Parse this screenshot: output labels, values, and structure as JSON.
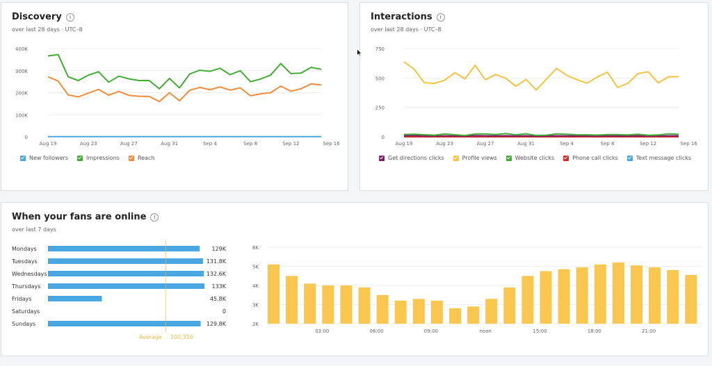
{
  "discovery": {
    "title": "Discovery",
    "subtitle": "over last 28 days · UTC–8",
    "y_labels": [
      "400K",
      "300K",
      "200K",
      "100K",
      "0"
    ],
    "x_labels": [
      "Aug 19",
      "Aug 23",
      "Aug 27",
      "Aug 31",
      "Sep 4",
      "Sep 8",
      "Sep 12",
      "Sep 16"
    ],
    "legend": [
      {
        "label": "New followers",
        "color": "#4aa6e0"
      },
      {
        "label": "Impressions",
        "color": "#42ac35"
      },
      {
        "label": "Reach",
        "color": "#f28c3a"
      }
    ]
  },
  "interactions": {
    "title": "Interactions",
    "subtitle": "over last 28 days · UTC–8",
    "y_labels": [
      "750",
      "500",
      "250",
      "0"
    ],
    "x_labels": [
      "Aug 19",
      "Aug 23",
      "Aug 27",
      "Aug 31",
      "Sep 4",
      "Sep 8",
      "Sep 12",
      "Sep 16"
    ],
    "legend": [
      {
        "label": "Get directions clicks",
        "color": "#7b1f6a"
      },
      {
        "label": "Profile views",
        "color": "#f5c342"
      },
      {
        "label": "Website clicks",
        "color": "#42ac35"
      },
      {
        "label": "Phone call clicks",
        "color": "#d62a2a"
      },
      {
        "label": "Text message clicks",
        "color": "#4aa6e0"
      }
    ]
  },
  "fans": {
    "title": "When your fans are online",
    "subtitle": "over last 7 days",
    "days": [
      {
        "label": "Mondays",
        "value": 129,
        "value_label": "129K"
      },
      {
        "label": "Tuesdays",
        "value": 131.8,
        "value_label": "131.8K"
      },
      {
        "label": "Wednesdays",
        "value": 132.6,
        "value_label": "132.6K"
      },
      {
        "label": "Thursdays",
        "value": 133,
        "value_label": "133K"
      },
      {
        "label": "Fridays",
        "value": 45.8,
        "value_label": "45.8K"
      },
      {
        "label": "Saturdays",
        "value": 0,
        "value_label": "0"
      },
      {
        "label": "Sundays",
        "value": 129.8,
        "value_label": "129.8K"
      }
    ],
    "average_label": "Average",
    "average_value": "100,316",
    "average_num": 100.316,
    "hour_y_labels": [
      "6K",
      "5K",
      "4K",
      "3K",
      "2K"
    ],
    "hour_x_labels": [
      {
        "index": 3,
        "label": "03:00"
      },
      {
        "index": 6,
        "label": "06:00"
      },
      {
        "index": 9,
        "label": "09:00"
      },
      {
        "index": 12,
        "label": "noon"
      },
      {
        "index": 15,
        "label": "15:00"
      },
      {
        "index": 18,
        "label": "18:00"
      },
      {
        "index": 21,
        "label": "21:00"
      }
    ]
  },
  "colors": {
    "bar_blue": "#4aa6e0",
    "bar_yellow": "#f9c74f",
    "grid": "#eeeeee",
    "average": "#f5b942"
  },
  "chart_data": [
    {
      "type": "line",
      "title": "Discovery",
      "x": [
        "Aug 19",
        "Aug 20",
        "Aug 21",
        "Aug 22",
        "Aug 23",
        "Aug 24",
        "Aug 25",
        "Aug 26",
        "Aug 27",
        "Aug 28",
        "Aug 29",
        "Aug 30",
        "Aug 31",
        "Sep 1",
        "Sep 2",
        "Sep 3",
        "Sep 4",
        "Sep 5",
        "Sep 6",
        "Sep 7",
        "Sep 8",
        "Sep 9",
        "Sep 10",
        "Sep 11",
        "Sep 12",
        "Sep 13",
        "Sep 14",
        "Sep 15"
      ],
      "ylim": [
        0,
        400000
      ],
      "series": [
        {
          "name": "Impressions",
          "values": [
            367000,
            373000,
            272000,
            255000,
            280000,
            295000,
            248000,
            275000,
            263000,
            255000,
            255000,
            218000,
            265000,
            222000,
            285000,
            302000,
            297000,
            311000,
            282000,
            300000,
            250000,
            262000,
            280000,
            332000,
            287000,
            289000,
            315000,
            306000
          ]
        },
        {
          "name": "Reach",
          "values": [
            272000,
            253000,
            190000,
            181000,
            198000,
            215000,
            189000,
            206000,
            188000,
            184000,
            183000,
            160000,
            200000,
            163000,
            211000,
            224000,
            214000,
            226000,
            212000,
            222000,
            186000,
            195000,
            200000,
            230000,
            207000,
            218000,
            240000,
            235000
          ]
        },
        {
          "name": "New followers",
          "values": [
            1000,
            1000,
            1000,
            1000,
            1000,
            1000,
            1000,
            1000,
            1000,
            1000,
            1000,
            1000,
            1000,
            1000,
            1000,
            1000,
            1000,
            1000,
            1000,
            1000,
            1000,
            1000,
            1000,
            1000,
            1000,
            1000,
            1000,
            1000
          ]
        }
      ]
    },
    {
      "type": "line",
      "title": "Interactions",
      "x": [
        "Aug 19",
        "Aug 20",
        "Aug 21",
        "Aug 22",
        "Aug 23",
        "Aug 24",
        "Aug 25",
        "Aug 26",
        "Aug 27",
        "Aug 28",
        "Aug 29",
        "Aug 30",
        "Aug 31",
        "Sep 1",
        "Sep 2",
        "Sep 3",
        "Sep 4",
        "Sep 5",
        "Sep 6",
        "Sep 7",
        "Sep 8",
        "Sep 9",
        "Sep 10",
        "Sep 11",
        "Sep 12",
        "Sep 13",
        "Sep 14",
        "Sep 15"
      ],
      "ylim": [
        0,
        750
      ],
      "series": [
        {
          "name": "Profile views",
          "values": [
            638,
            575,
            460,
            455,
            482,
            545,
            493,
            608,
            485,
            530,
            498,
            430,
            487,
            398,
            491,
            582,
            523,
            486,
            456,
            509,
            550,
            420,
            454,
            538,
            553,
            458,
            510,
            512
          ]
        },
        {
          "name": "Website clicks",
          "values": [
            20,
            22,
            18,
            14,
            24,
            18,
            11,
            24,
            24,
            20,
            27,
            18,
            26,
            12,
            14,
            25,
            22,
            18,
            17,
            15,
            19,
            19,
            16,
            22,
            13,
            16,
            25,
            22
          ]
        },
        {
          "name": "Get directions clicks",
          "values": [
            10,
            10,
            8,
            7,
            8,
            8,
            6,
            10,
            9,
            8,
            9,
            7,
            9,
            6,
            7,
            9,
            8,
            8,
            7,
            7,
            8,
            8,
            7,
            9,
            7,
            7,
            9,
            9
          ]
        },
        {
          "name": "Phone call clicks",
          "values": [
            0,
            0,
            0,
            0,
            0,
            0,
            0,
            0,
            0,
            0,
            0,
            0,
            0,
            0,
            0,
            0,
            0,
            0,
            0,
            0,
            0,
            0,
            0,
            0,
            0,
            0,
            0,
            0
          ]
        },
        {
          "name": "Text message clicks",
          "values": [
            0,
            0,
            0,
            0,
            0,
            0,
            0,
            0,
            0,
            0,
            0,
            0,
            0,
            0,
            0,
            0,
            0,
            0,
            0,
            0,
            0,
            0,
            0,
            0,
            0,
            0,
            0,
            0
          ]
        }
      ]
    },
    {
      "type": "bar",
      "title": "When your fans are online",
      "categories": [
        "Mondays",
        "Tuesdays",
        "Wednesdays",
        "Thursdays",
        "Fridays",
        "Saturdays",
        "Sundays"
      ],
      "values": [
        129000,
        131800,
        132600,
        133000,
        45800,
        0,
        129800
      ]
    },
    {
      "type": "bar",
      "x": [
        0,
        1,
        2,
        3,
        4,
        5,
        6,
        7,
        8,
        9,
        10,
        11,
        12,
        13,
        14,
        15,
        16,
        17,
        18,
        19,
        20,
        21,
        22,
        23
      ],
      "values": [
        5100,
        4500,
        4100,
        4000,
        4000,
        3900,
        3500,
        3200,
        3300,
        3200,
        2800,
        2900,
        3300,
        3900,
        4500,
        4750,
        4850,
        4950,
        5100,
        5200,
        5050,
        4950,
        4800,
        4550
      ],
      "ylim": [
        2000,
        6000
      ]
    }
  ]
}
